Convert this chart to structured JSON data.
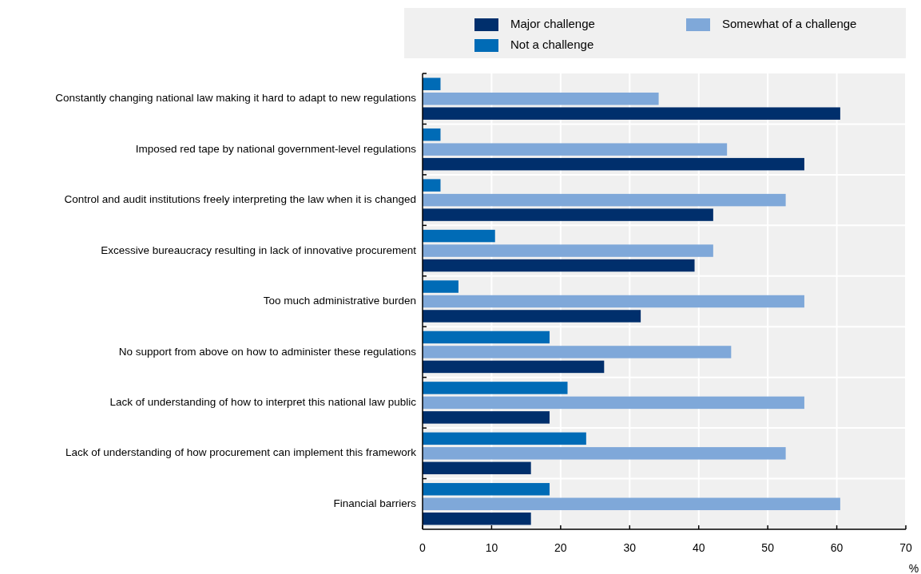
{
  "chart_data": {
    "type": "bar",
    "orientation": "horizontal",
    "xlabel": "%",
    "categories": [
      "Constantly changing national law making it hard to adapt to new regulations",
      "Imposed red tape by national government-level regulations",
      "Control and audit institutions freely interpreting the law when it is changed",
      "Excessive bureaucracy resulting in lack of innovative procurement",
      "Too much administrative burden",
      "No support from above on how to administer these regulations",
      "Lack of understanding of how to interpret this national law public",
      "Lack of understanding of how procurement can implement this framework",
      "Financial barriers"
    ],
    "series": [
      {
        "name": "Major challenge",
        "color": "#002f6c",
        "values": [
          60.5,
          55.3,
          42.1,
          39.4,
          31.6,
          26.3,
          18.4,
          15.7,
          15.7
        ]
      },
      {
        "name": "Not a challenge",
        "color": "#006bb6",
        "values": [
          2.6,
          2.6,
          2.6,
          10.5,
          5.2,
          18.4,
          21.0,
          23.7,
          18.4
        ]
      },
      {
        "name": "Somewhat of a challenge",
        "color": "#7fa8d9",
        "values": [
          34.2,
          44.1,
          52.6,
          42.1,
          55.3,
          44.7,
          55.3,
          52.6,
          60.5
        ]
      }
    ],
    "xlim": [
      0,
      70
    ],
    "xticks": [
      0,
      10,
      20,
      30,
      40,
      50,
      60,
      70
    ],
    "grid": true,
    "legend": "top"
  }
}
